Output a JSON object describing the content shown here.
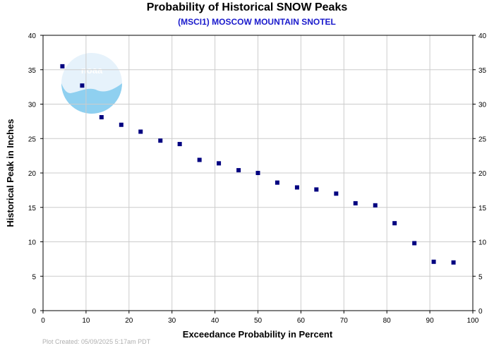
{
  "chart_data": {
    "type": "scatter",
    "title": "Probability of Historical SNOW Peaks",
    "subtitle": "(MSCI1) MOSCOW MOUNTAIN SNOTEL",
    "xlabel": "Exceedance Probability in Percent",
    "ylabel": "Historical Peak in Inches",
    "xlim": [
      0,
      100
    ],
    "ylim": [
      0,
      40
    ],
    "xticks": [
      0,
      10,
      20,
      30,
      40,
      50,
      60,
      70,
      80,
      90,
      100
    ],
    "yticks": [
      0,
      5,
      10,
      15,
      20,
      25,
      30,
      35,
      40
    ],
    "grid": true,
    "marker_color": "#000080",
    "grid_color": "#cccccc",
    "x": [
      4.5,
      9.1,
      13.6,
      18.2,
      22.7,
      27.3,
      31.8,
      36.4,
      40.9,
      45.5,
      50.0,
      54.5,
      59.1,
      63.6,
      68.2,
      72.7,
      77.3,
      81.8,
      86.4,
      90.9,
      95.5
    ],
    "y": [
      35.5,
      32.7,
      28.1,
      27.0,
      26.0,
      24.7,
      24.2,
      21.9,
      21.4,
      20.4,
      20.0,
      18.6,
      17.9,
      17.6,
      17.0,
      15.6,
      15.3,
      12.7,
      9.8,
      7.1,
      7.0
    ]
  },
  "logo": {
    "text": "noaa",
    "colors": [
      "#e6f2fb",
      "#8fd0f0"
    ]
  },
  "footer": {
    "plot_created": "Plot Created: 05/09/2025 5:17am PDT"
  }
}
